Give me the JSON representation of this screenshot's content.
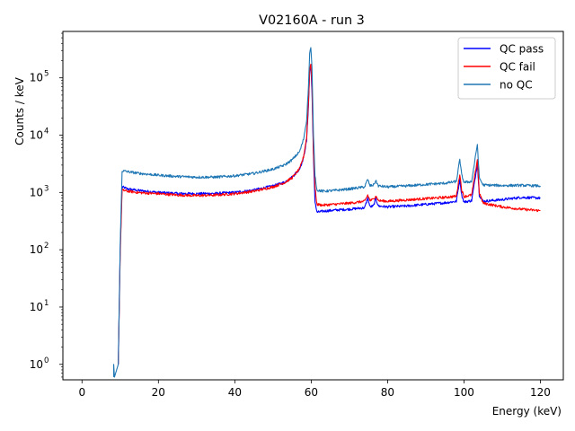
{
  "chart_data": {
    "type": "line",
    "title": "V02160A - run 3",
    "xlabel": "Energy (keV)",
    "ylabel": "Counts / keV",
    "xlim": [
      -5,
      126
    ],
    "ylim_log10": [
      -0.27,
      5.81
    ],
    "yscale": "log",
    "grid": false,
    "legend_position": "top-right",
    "x_ticks": [
      0,
      20,
      40,
      60,
      80,
      100,
      120
    ],
    "x_tick_labels": [
      "0",
      "20",
      "40",
      "60",
      "80",
      "100",
      "120"
    ],
    "y_ticks_exp": [
      0,
      1,
      2,
      3,
      4,
      5
    ],
    "y_tick_labels": [
      "10",
      "10",
      "10",
      "10",
      "10",
      "10"
    ],
    "y_tick_sup": [
      "0",
      "1",
      "2",
      "3",
      "4",
      "5"
    ],
    "series": [
      {
        "name": "QC pass",
        "color": "#0000ff",
        "points": [
          [
            9.5,
            1
          ],
          [
            10,
            100
          ],
          [
            10.5,
            1250
          ],
          [
            12,
            1150
          ],
          [
            15,
            1080
          ],
          [
            20,
            1000
          ],
          [
            25,
            960
          ],
          [
            30,
            950
          ],
          [
            35,
            960
          ],
          [
            40,
            1000
          ],
          [
            45,
            1100
          ],
          [
            50,
            1300
          ],
          [
            53,
            1500
          ],
          [
            55,
            1850
          ],
          [
            57,
            2600
          ],
          [
            58,
            4000
          ],
          [
            58.8,
            8000
          ],
          [
            59.3,
            35000
          ],
          [
            59.6,
            130000
          ],
          [
            59.9,
            165000
          ],
          [
            60.2,
            60000
          ],
          [
            60.6,
            4000
          ],
          [
            61,
            700
          ],
          [
            61.5,
            450
          ],
          [
            63,
            470
          ],
          [
            66,
            490
          ],
          [
            70,
            510
          ],
          [
            74,
            540
          ],
          [
            74.8,
            800
          ],
          [
            75.4,
            560
          ],
          [
            76.3,
            580
          ],
          [
            76.9,
            780
          ],
          [
            77.6,
            580
          ],
          [
            80,
            560
          ],
          [
            85,
            580
          ],
          [
            90,
            620
          ],
          [
            95,
            660
          ],
          [
            98,
            700
          ],
          [
            98.9,
            1700
          ],
          [
            99.4,
            900
          ],
          [
            100,
            680
          ],
          [
            102,
            720
          ],
          [
            103,
            1900
          ],
          [
            103.5,
            3200
          ],
          [
            104,
            900
          ],
          [
            105,
            700
          ],
          [
            110,
            750
          ],
          [
            115,
            820
          ],
          [
            120,
            800
          ]
        ]
      },
      {
        "name": "QC fail",
        "color": "#ff0000",
        "points": [
          [
            9.5,
            1
          ],
          [
            10,
            80
          ],
          [
            10.5,
            1100
          ],
          [
            12,
            1050
          ],
          [
            15,
            990
          ],
          [
            20,
            950
          ],
          [
            25,
            900
          ],
          [
            30,
            880
          ],
          [
            35,
            900
          ],
          [
            40,
            950
          ],
          [
            45,
            1050
          ],
          [
            50,
            1250
          ],
          [
            53,
            1480
          ],
          [
            55,
            1800
          ],
          [
            57,
            2600
          ],
          [
            58,
            4200
          ],
          [
            58.8,
            9000
          ],
          [
            59.3,
            40000
          ],
          [
            59.6,
            140000
          ],
          [
            59.9,
            175000
          ],
          [
            60.2,
            80000
          ],
          [
            60.6,
            5000
          ],
          [
            61,
            1200
          ],
          [
            61.5,
            620
          ],
          [
            63,
            600
          ],
          [
            66,
            620
          ],
          [
            70,
            650
          ],
          [
            74,
            700
          ],
          [
            74.8,
            900
          ],
          [
            75.4,
            720
          ],
          [
            76.3,
            760
          ],
          [
            76.9,
            880
          ],
          [
            77.6,
            720
          ],
          [
            80,
            700
          ],
          [
            85,
            740
          ],
          [
            90,
            780
          ],
          [
            95,
            820
          ],
          [
            98,
            860
          ],
          [
            98.9,
            2100
          ],
          [
            99.4,
            1100
          ],
          [
            100,
            850
          ],
          [
            102,
            900
          ],
          [
            103,
            2300
          ],
          [
            103.5,
            3800
          ],
          [
            104,
            1000
          ],
          [
            105,
            650
          ],
          [
            110,
            560
          ],
          [
            115,
            510
          ],
          [
            120,
            480
          ]
        ]
      },
      {
        "name": "no QC",
        "color": "#1f77b4",
        "points": [
          [
            8.3,
            0.6
          ],
          [
            8.3,
            1
          ],
          [
            8.5,
            0.6
          ],
          [
            9.5,
            1
          ],
          [
            10,
            120
          ],
          [
            10.5,
            2400
          ],
          [
            12,
            2300
          ],
          [
            15,
            2150
          ],
          [
            20,
            2000
          ],
          [
            25,
            1900
          ],
          [
            30,
            1850
          ],
          [
            35,
            1850
          ],
          [
            40,
            1950
          ],
          [
            45,
            2150
          ],
          [
            50,
            2550
          ],
          [
            53,
            3000
          ],
          [
            55,
            3700
          ],
          [
            57,
            5200
          ],
          [
            58,
            8500
          ],
          [
            58.8,
            18000
          ],
          [
            59.3,
            75000
          ],
          [
            59.6,
            270000
          ],
          [
            59.9,
            340000
          ],
          [
            60.2,
            150000
          ],
          [
            60.6,
            10000
          ],
          [
            61,
            2000
          ],
          [
            61.5,
            1100
          ],
          [
            63,
            1050
          ],
          [
            66,
            1080
          ],
          [
            70,
            1150
          ],
          [
            74,
            1250
          ],
          [
            74.8,
            1700
          ],
          [
            75.4,
            1300
          ],
          [
            76.3,
            1350
          ],
          [
            76.9,
            1600
          ],
          [
            77.6,
            1300
          ],
          [
            80,
            1250
          ],
          [
            85,
            1300
          ],
          [
            90,
            1380
          ],
          [
            95,
            1450
          ],
          [
            98,
            1550
          ],
          [
            98.9,
            3800
          ],
          [
            99.4,
            2000
          ],
          [
            100,
            1500
          ],
          [
            102,
            1550
          ],
          [
            103,
            4200
          ],
          [
            103.5,
            7000
          ],
          [
            104,
            1800
          ],
          [
            105,
            1350
          ],
          [
            110,
            1320
          ],
          [
            115,
            1330
          ],
          [
            120,
            1300
          ]
        ]
      }
    ]
  }
}
